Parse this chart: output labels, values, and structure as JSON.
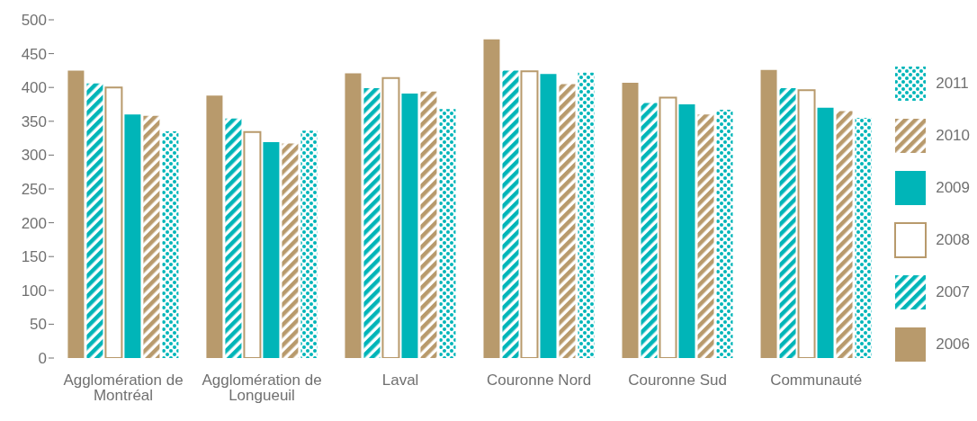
{
  "chart_data": {
    "type": "bar",
    "categories": [
      "Agglomération de Montréal",
      "Agglomération de Longueuil",
      "Laval",
      "Couronne Nord",
      "Couronne Sud",
      "Communauté"
    ],
    "series": [
      {
        "name": "2006",
        "color": "#b89a6c",
        "values": [
          425,
          388,
          421,
          471,
          407,
          426
        ]
      },
      {
        "name": "2007",
        "color": "#00b5b8",
        "values": [
          406,
          354,
          399,
          425,
          377,
          399
        ]
      },
      {
        "name": "2008",
        "color": "#b89a6c",
        "values": [
          400,
          334,
          414,
          424,
          385,
          396
        ]
      },
      {
        "name": "2009",
        "color": "#00b5b8",
        "values": [
          360,
          319,
          391,
          420,
          375,
          370
        ]
      },
      {
        "name": "2010",
        "color": "#b89a6c",
        "values": [
          358,
          317,
          394,
          405,
          360,
          365
        ]
      },
      {
        "name": "2011",
        "color": "#00b5b8",
        "values": [
          335,
          336,
          368,
          422,
          367,
          355
        ]
      }
    ],
    "ylim": [
      0,
      500
    ],
    "yticks": [
      0,
      50,
      100,
      150,
      200,
      250,
      300,
      350,
      400,
      450,
      500
    ],
    "grid": false,
    "legend": "right"
  }
}
